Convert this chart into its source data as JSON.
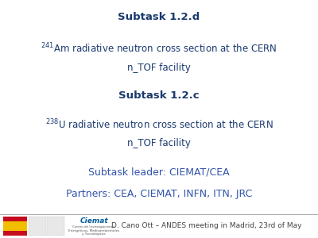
{
  "bg_color": "#ffffff",
  "dark_blue": "#1a3a6e",
  "medium_blue": "#3355aa",
  "footer_bg": "#d8d8d8",
  "footer_line_color": "#aaaaaa",
  "subtask_d_bold": "Subtask 1.2.d",
  "subtask_d_line1": "$^{241}$Am radiative neutron cross section at the CERN",
  "subtask_d_line2": "n_TOF facility",
  "subtask_c_bold": "Subtask 1.2.c",
  "subtask_c_line1": "$^{238}$U radiative neutron cross section at the CERN",
  "subtask_c_line2": "n_TOF facility",
  "leader_line": "Subtask leader: CIEMAT/CEA",
  "partners_line": "Partners: CEA, CIEMAT, INFN, ITN, JRC",
  "footer_text": "D. Cano Ott – ANDES meeting in Madrid, 23rd of May",
  "title_fontsize": 9.5,
  "body_fontsize": 8.5,
  "leader_fontsize": 9,
  "footer_fontsize": 6.5,
  "flag_red": "#c60b1e",
  "flag_yellow": "#f1bf00",
  "ciemat_color": "#005a9c"
}
